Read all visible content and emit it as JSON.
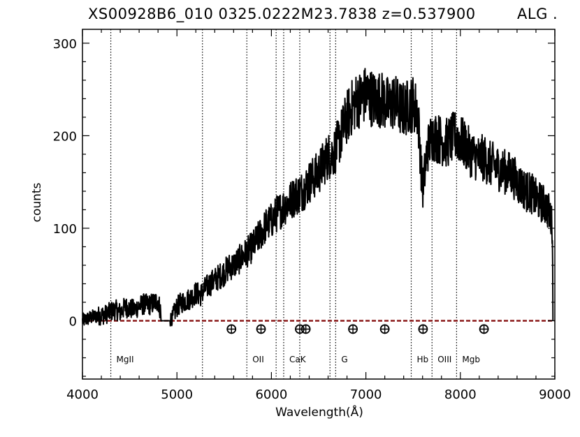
{
  "chart_data": {
    "type": "line",
    "title": "XS00928B6_010  0325.0222M23.7838  z=0.537900",
    "title_right": "ALG .",
    "xlabel": "Wavelength(Å)",
    "ylabel": "counts",
    "xlim": [
      4000,
      9000
    ],
    "ylim": [
      -63,
      315
    ],
    "x_ticks": [
      4000,
      5000,
      6000,
      7000,
      8000,
      9000
    ],
    "y_ticks": [
      0,
      100,
      200,
      300
    ],
    "x_minor_step": 200,
    "y_minor_step": 20,
    "grid": false,
    "colors": {
      "spectrum": "#000000",
      "continuum": "#8b1a1a",
      "sky_marker": "#000000"
    },
    "spectrum": {
      "name": "",
      "x": [
        4000,
        4050,
        4100,
        4150,
        4200,
        4250,
        4300,
        4350,
        4400,
        4450,
        4500,
        4550,
        4600,
        4650,
        4700,
        4750,
        4800,
        4850,
        4900,
        4950,
        5000,
        5050,
        5100,
        5150,
        5200,
        5250,
        5300,
        5350,
        5400,
        5450,
        5500,
        5550,
        5600,
        5650,
        5700,
        5750,
        5800,
        5850,
        5900,
        5950,
        6000,
        6050,
        6100,
        6150,
        6200,
        6250,
        6300,
        6350,
        6400,
        6450,
        6500,
        6550,
        6600,
        6650,
        6700,
        6750,
        6800,
        6850,
        6900,
        6950,
        7000,
        7050,
        7100,
        7150,
        7200,
        7250,
        7300,
        7350,
        7400,
        7450,
        7500,
        7550,
        7600,
        7650,
        7700,
        7750,
        7800,
        7850,
        7900,
        7950,
        8000,
        8050,
        8100,
        8150,
        8200,
        8250,
        8300,
        8350,
        8400,
        8450,
        8500,
        8550,
        8600,
        8650,
        8700,
        8750,
        8800,
        8850,
        8900,
        8950,
        8975,
        8980
      ],
      "y": [
        0,
        2,
        4,
        5,
        6,
        7,
        10,
        12,
        9,
        15,
        13,
        12,
        16,
        18,
        17,
        19,
        22,
        0,
        0,
        3,
        15,
        20,
        22,
        25,
        30,
        28,
        35,
        40,
        44,
        48,
        52,
        58,
        60,
        65,
        70,
        75,
        80,
        88,
        96,
        104,
        108,
        115,
        120,
        125,
        130,
        135,
        138,
        143,
        150,
        155,
        160,
        170,
        178,
        180,
        190,
        205,
        220,
        230,
        238,
        240,
        245,
        242,
        238,
        240,
        236,
        232,
        238,
        230,
        228,
        232,
        235,
        225,
        140,
        185,
        200,
        198,
        195,
        192,
        196,
        200,
        195,
        190,
        182,
        178,
        175,
        176,
        170,
        168,
        165,
        162,
        160,
        158,
        150,
        145,
        140,
        138,
        132,
        128,
        125,
        115,
        100,
        0
      ]
    },
    "continuum": {
      "x": [
        4000,
        9000
      ],
      "y": [
        0,
        0
      ]
    },
    "sky_markers": {
      "x": [
        5577,
        5890,
        6300,
        6364,
        6863,
        7200,
        7605,
        8250
      ],
      "y": [
        -9,
        -9,
        -9,
        -9,
        -9,
        -9,
        -9,
        -9
      ]
    },
    "feature_lines": {
      "x": [
        4300,
        5270,
        5740,
        6050,
        6130,
        6300,
        6620,
        6680,
        7480,
        7700,
        7960
      ],
      "labels": [
        {
          "text": "MgII",
          "x": 4300
        },
        {
          "text": "OII",
          "x": 5740
        },
        {
          "text": "CaK",
          "x": 6130
        },
        {
          "text": "G",
          "x": 6680
        },
        {
          "text": "Hb",
          "x": 7480
        },
        {
          "text": "OIII",
          "x": 7700
        },
        {
          "text": "Mgb",
          "x": 7960
        }
      ],
      "label_y": -42
    }
  }
}
